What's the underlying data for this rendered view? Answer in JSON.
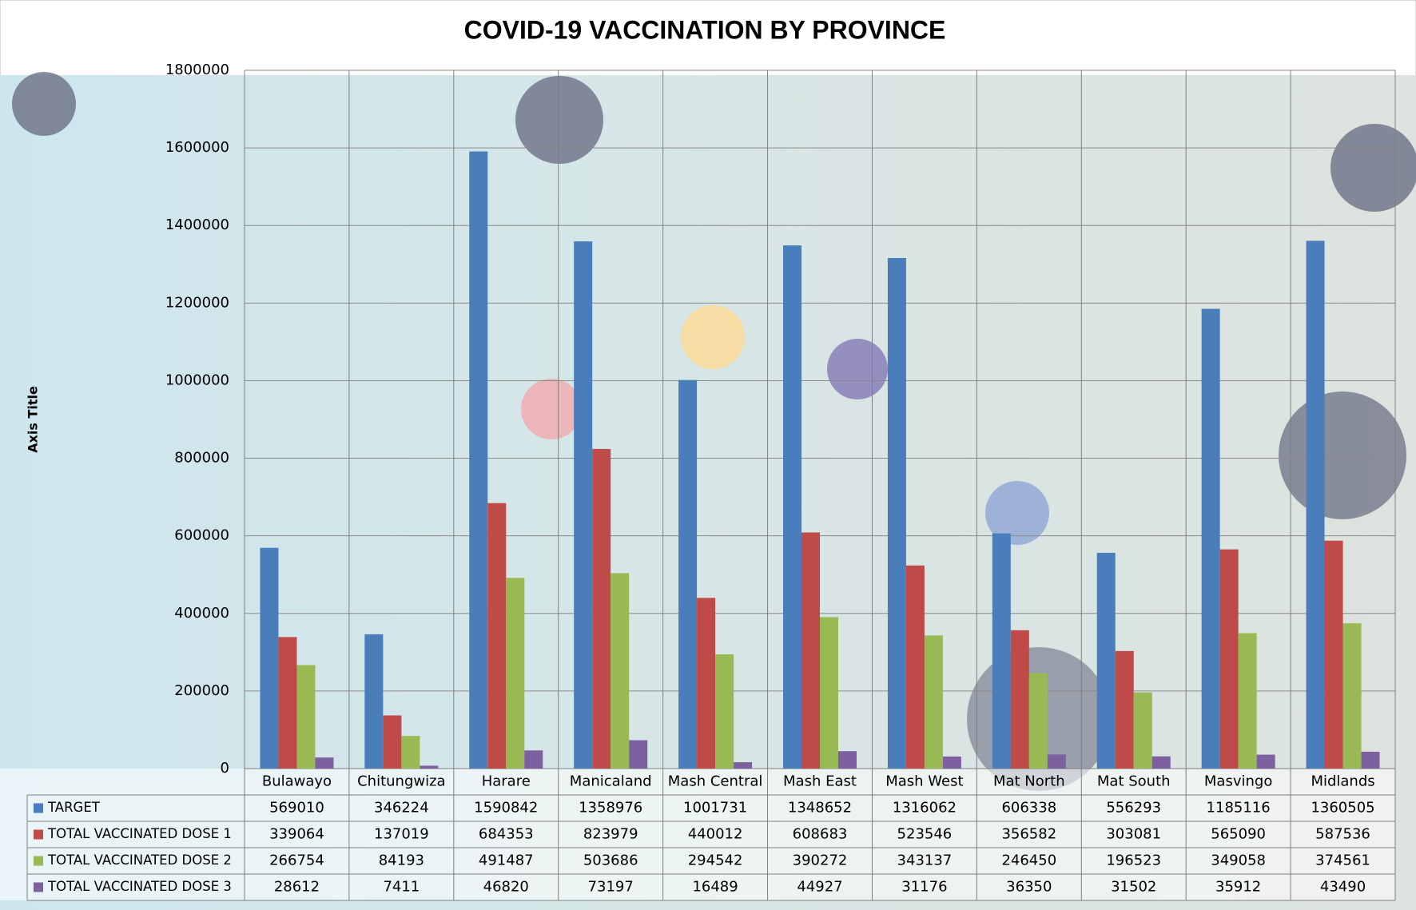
{
  "chart_data": {
    "type": "bar",
    "title": "COVID-19 VACCINATION BY PROVINCE",
    "y_label": "Axis Title",
    "categories": [
      "Bulawayo",
      "Chitungwiza",
      "Harare",
      "Manicaland",
      "Mash Central",
      "Mash East",
      "Mash West",
      "Mat North",
      "Mat South",
      "Masvingo",
      "Midlands"
    ],
    "series": [
      {
        "name": "TARGET",
        "color": "#4a7ebb",
        "values": [
          569010,
          346224,
          1590842,
          1358976,
          1001731,
          1348652,
          1316062,
          606338,
          556293,
          1185116,
          1360505
        ]
      },
      {
        "name": "TOTAL VACCINATED DOSE 1",
        "color": "#be4b48",
        "values": [
          339064,
          137019,
          684353,
          823979,
          440012,
          608683,
          523546,
          356582,
          303081,
          565090,
          587536
        ]
      },
      {
        "name": "TOTAL VACCINATED DOSE 2",
        "color": "#98b954",
        "values": [
          266754,
          84193,
          491487,
          503686,
          294542,
          390272,
          343137,
          246450,
          196523,
          349058,
          374561
        ]
      },
      {
        "name": "TOTAL VACCINATED DOSE 3",
        "color": "#7d60a0",
        "values": [
          28612,
          7411,
          46820,
          73197,
          16489,
          44927,
          31176,
          36350,
          31502,
          35912,
          43490
        ]
      }
    ],
    "ylim": [
      0,
      1800000
    ],
    "yticks": [
      0,
      200000,
      400000,
      600000,
      800000,
      1000000,
      1200000,
      1400000,
      1600000,
      1800000
    ],
    "grid": true
  }
}
